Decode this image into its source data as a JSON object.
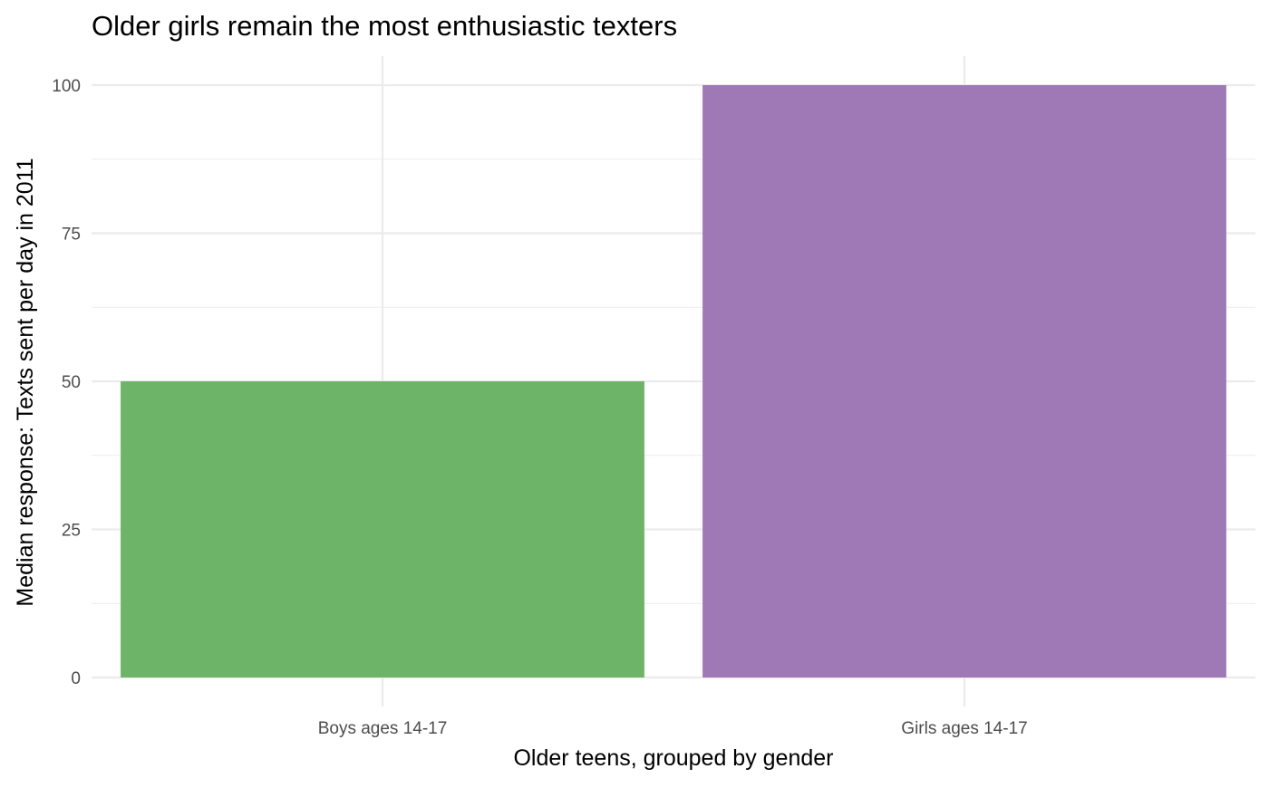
{
  "chart_data": {
    "type": "bar",
    "title": "Older girls remain the most enthusiastic texters",
    "xlabel": "Older teens, grouped by gender",
    "ylabel": "Median response: Texts sent per day in 2011",
    "categories": [
      "Boys ages 14-17",
      "Girls ages 14-17"
    ],
    "values": [
      50,
      100
    ],
    "bar_colors": [
      "#6eb468",
      "#9e79b5"
    ],
    "ylim": [
      0,
      100
    ],
    "yticks": [
      0,
      25,
      50,
      75,
      100
    ],
    "grid": true,
    "legend": "none"
  }
}
